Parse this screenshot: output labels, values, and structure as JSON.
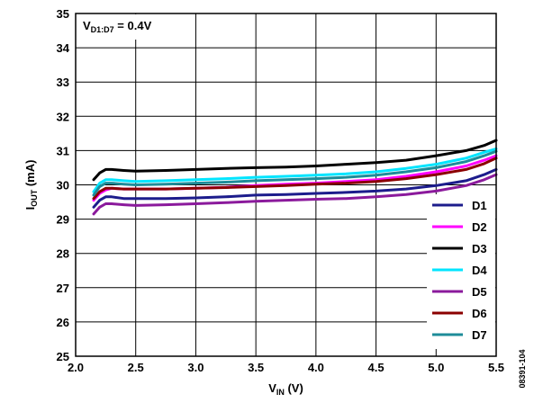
{
  "chart_data": {
    "type": "line",
    "annotation": {
      "prefix": "V",
      "sub": "D1:D7",
      "suffix": " = 0.4V"
    },
    "xlabel": {
      "main": "V",
      "sub": "IN",
      "unit": " (V)"
    },
    "ylabel": {
      "main": "I",
      "sub": "OUT",
      "unit": " (mA)"
    },
    "xlim": [
      2.0,
      5.5
    ],
    "ylim": [
      25,
      35
    ],
    "xticks": [
      2.0,
      2.5,
      3.0,
      3.5,
      4.0,
      4.5,
      5.0,
      5.5
    ],
    "xtick_labels": [
      "2.0",
      "2.5",
      "3.0",
      "3.5",
      "4.0",
      "4.5",
      "5.0",
      "5.5"
    ],
    "yticks": [
      25,
      26,
      27,
      28,
      29,
      30,
      31,
      32,
      33,
      34,
      35
    ],
    "ytick_labels": [
      "25",
      "26",
      "27",
      "28",
      "29",
      "30",
      "31",
      "32",
      "33",
      "34",
      "35"
    ],
    "grid": true,
    "legend_position": "bottom-right",
    "figure_id": "08391-104",
    "series": [
      {
        "name": "D1",
        "color": "#1c1c8c",
        "x": [
          2.15,
          2.2,
          2.25,
          2.3,
          2.4,
          2.5,
          2.75,
          3.0,
          3.25,
          3.5,
          3.75,
          4.0,
          4.25,
          4.5,
          4.75,
          5.0,
          5.25,
          5.4,
          5.5
        ],
        "y": [
          29.35,
          29.55,
          29.65,
          29.65,
          29.6,
          29.6,
          29.6,
          29.62,
          29.65,
          29.7,
          29.72,
          29.75,
          29.78,
          29.82,
          29.88,
          29.98,
          30.12,
          30.3,
          30.45
        ]
      },
      {
        "name": "D2",
        "color": "#ff00ff",
        "x": [
          2.15,
          2.2,
          2.25,
          2.3,
          2.4,
          2.5,
          2.75,
          3.0,
          3.25,
          3.5,
          3.75,
          4.0,
          4.25,
          4.5,
          4.75,
          5.0,
          5.25,
          5.4,
          5.5
        ],
        "y": [
          29.55,
          29.75,
          29.85,
          29.9,
          29.88,
          29.88,
          29.88,
          29.9,
          29.93,
          29.98,
          30.02,
          30.05,
          30.1,
          30.15,
          30.25,
          30.38,
          30.55,
          30.72,
          30.85
        ]
      },
      {
        "name": "D3",
        "color": "#000000",
        "x": [
          2.15,
          2.2,
          2.25,
          2.3,
          2.4,
          2.5,
          2.75,
          3.0,
          3.25,
          3.5,
          3.75,
          4.0,
          4.25,
          4.5,
          4.75,
          5.0,
          5.25,
          5.4,
          5.5
        ],
        "y": [
          30.15,
          30.35,
          30.45,
          30.45,
          30.42,
          30.4,
          30.42,
          30.45,
          30.48,
          30.5,
          30.52,
          30.55,
          30.6,
          30.65,
          30.72,
          30.85,
          31.0,
          31.15,
          31.3
        ]
      },
      {
        "name": "D4",
        "color": "#00e5ff",
        "x": [
          2.15,
          2.2,
          2.25,
          2.3,
          2.4,
          2.5,
          2.75,
          3.0,
          3.25,
          3.5,
          3.75,
          4.0,
          4.25,
          4.5,
          4.75,
          5.0,
          5.25,
          5.4,
          5.5
        ],
        "y": [
          29.8,
          30.05,
          30.15,
          30.15,
          30.12,
          30.1,
          30.12,
          30.15,
          30.18,
          30.22,
          30.25,
          30.28,
          30.32,
          30.38,
          30.48,
          30.6,
          30.78,
          30.95,
          31.05
        ]
      },
      {
        "name": "D5",
        "color": "#8b1a9c",
        "x": [
          2.15,
          2.2,
          2.25,
          2.3,
          2.4,
          2.5,
          2.75,
          3.0,
          3.25,
          3.5,
          3.75,
          4.0,
          4.25,
          4.5,
          4.75,
          5.0,
          5.25,
          5.4,
          5.5
        ],
        "y": [
          29.15,
          29.35,
          29.45,
          29.45,
          29.42,
          29.4,
          29.42,
          29.45,
          29.48,
          29.52,
          29.55,
          29.58,
          29.6,
          29.65,
          29.72,
          29.82,
          29.98,
          30.15,
          30.3
        ]
      },
      {
        "name": "D6",
        "color": "#8b0000",
        "x": [
          2.15,
          2.2,
          2.25,
          2.3,
          2.4,
          2.5,
          2.75,
          3.0,
          3.25,
          3.5,
          3.75,
          4.0,
          4.25,
          4.5,
          4.75,
          5.0,
          5.25,
          5.4,
          5.5
        ],
        "y": [
          29.6,
          29.8,
          29.9,
          29.9,
          29.88,
          29.88,
          29.88,
          29.9,
          29.92,
          29.95,
          29.98,
          30.02,
          30.05,
          30.1,
          30.18,
          30.3,
          30.45,
          30.62,
          30.78
        ]
      },
      {
        "name": "D7",
        "color": "#1e8c99",
        "x": [
          2.15,
          2.2,
          2.25,
          2.3,
          2.4,
          2.5,
          2.75,
          3.0,
          3.25,
          3.5,
          3.75,
          4.0,
          4.25,
          4.5,
          4.75,
          5.0,
          5.25,
          5.4,
          5.5
        ],
        "y": [
          29.7,
          29.95,
          30.05,
          30.05,
          30.02,
          30.0,
          30.02,
          30.05,
          30.08,
          30.12,
          30.15,
          30.18,
          30.22,
          30.28,
          30.38,
          30.5,
          30.68,
          30.85,
          30.98
        ]
      }
    ]
  }
}
